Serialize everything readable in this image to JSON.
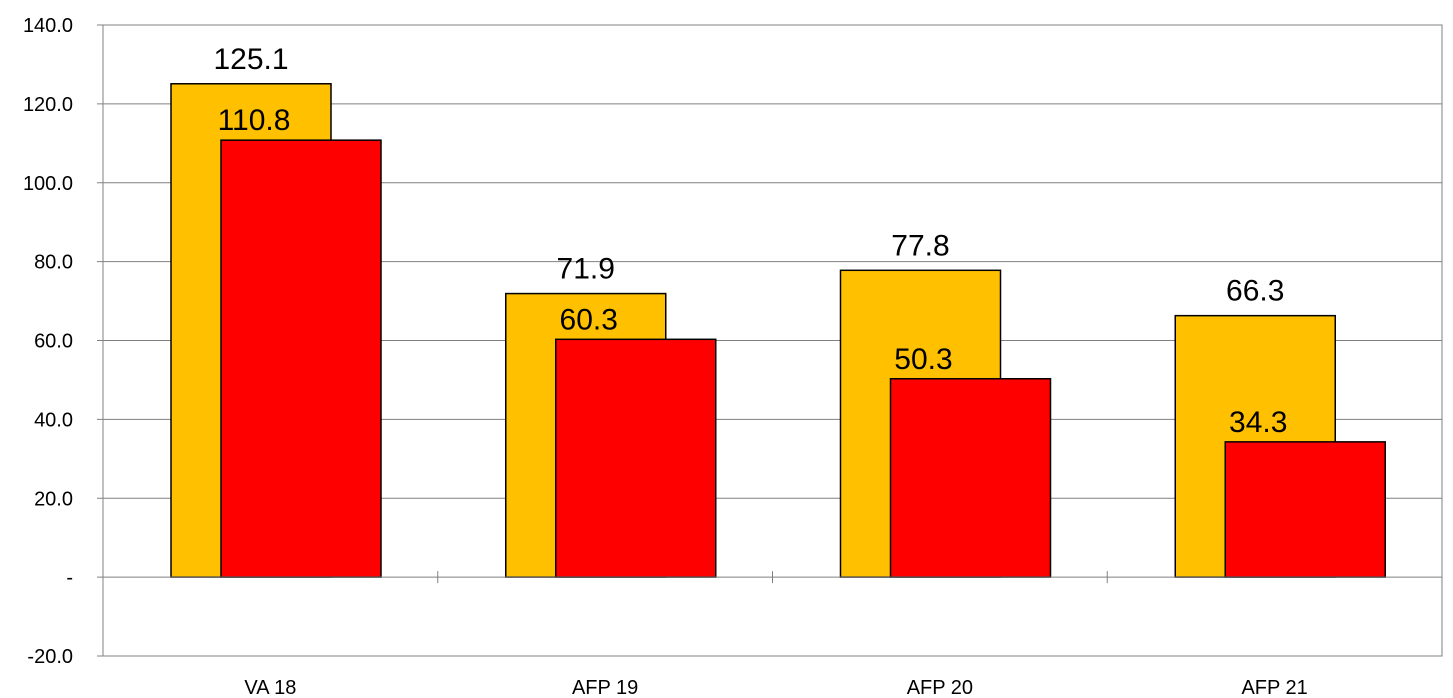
{
  "chart_data": {
    "type": "bar",
    "categories": [
      "VA 18",
      "AFP 19",
      "AFP 20",
      "AFP 21"
    ],
    "series": [
      {
        "values": [
          125.1,
          71.9,
          77.8,
          66.3
        ],
        "color": "#FFC000"
      },
      {
        "values": [
          110.8,
          60.3,
          50.3,
          34.3
        ],
        "color": "#FF0000"
      }
    ],
    "data_labels": [
      [
        "125.1",
        "71.9",
        "77.8",
        "66.3"
      ],
      [
        "110.8",
        "60.3",
        "50.3",
        "34.3"
      ]
    ],
    "ylim": [
      -20,
      140
    ],
    "y_ticks": [
      -20,
      0,
      20,
      40,
      60,
      80,
      100,
      120,
      140
    ],
    "y_tick_labels": [
      "-20.0",
      "-",
      "20.0",
      "40.0",
      "60.0",
      "80.0",
      "100.0",
      "120.0",
      "140.0"
    ],
    "grid": true,
    "legend": "none",
    "title": "",
    "xlabel": "",
    "ylabel": ""
  }
}
